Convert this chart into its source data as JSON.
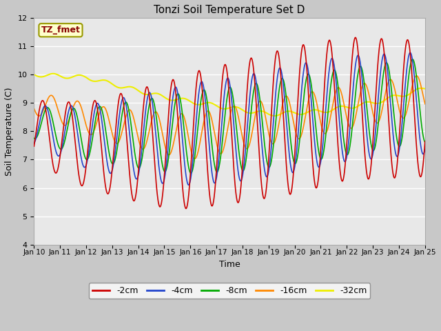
{
  "title": "Tonzi Soil Temperature Set D",
  "xlabel": "Time",
  "ylabel": "Soil Temperature (C)",
  "ylim": [
    4.0,
    12.0
  ],
  "yticks": [
    4.0,
    5.0,
    6.0,
    7.0,
    8.0,
    9.0,
    10.0,
    11.0,
    12.0
  ],
  "x_tick_labels": [
    "Jan 10",
    "Jan 11",
    "Jan 12",
    "Jan 13",
    "Jan 14",
    "Jan 15",
    "Jan 16",
    "Jan 17",
    "Jan 18",
    "Jan 19",
    "Jan 20",
    "Jan 21",
    "Jan 22",
    "Jan 23",
    "Jan 24",
    "Jan 25"
  ],
  "colors": {
    "-2cm": "#cc0000",
    "-4cm": "#2244cc",
    "-8cm": "#00aa00",
    "-16cm": "#ff8800",
    "-32cm": "#eeee00"
  },
  "annotation_label": "TZ_fmet",
  "annotation_facecolor": "#ffffcc",
  "annotation_edgecolor": "#999900",
  "annotation_textcolor": "#880000",
  "fig_facecolor": "#c8c8c8",
  "ax_facecolor": "#e8e8e8",
  "grid_color": "#ffffff"
}
